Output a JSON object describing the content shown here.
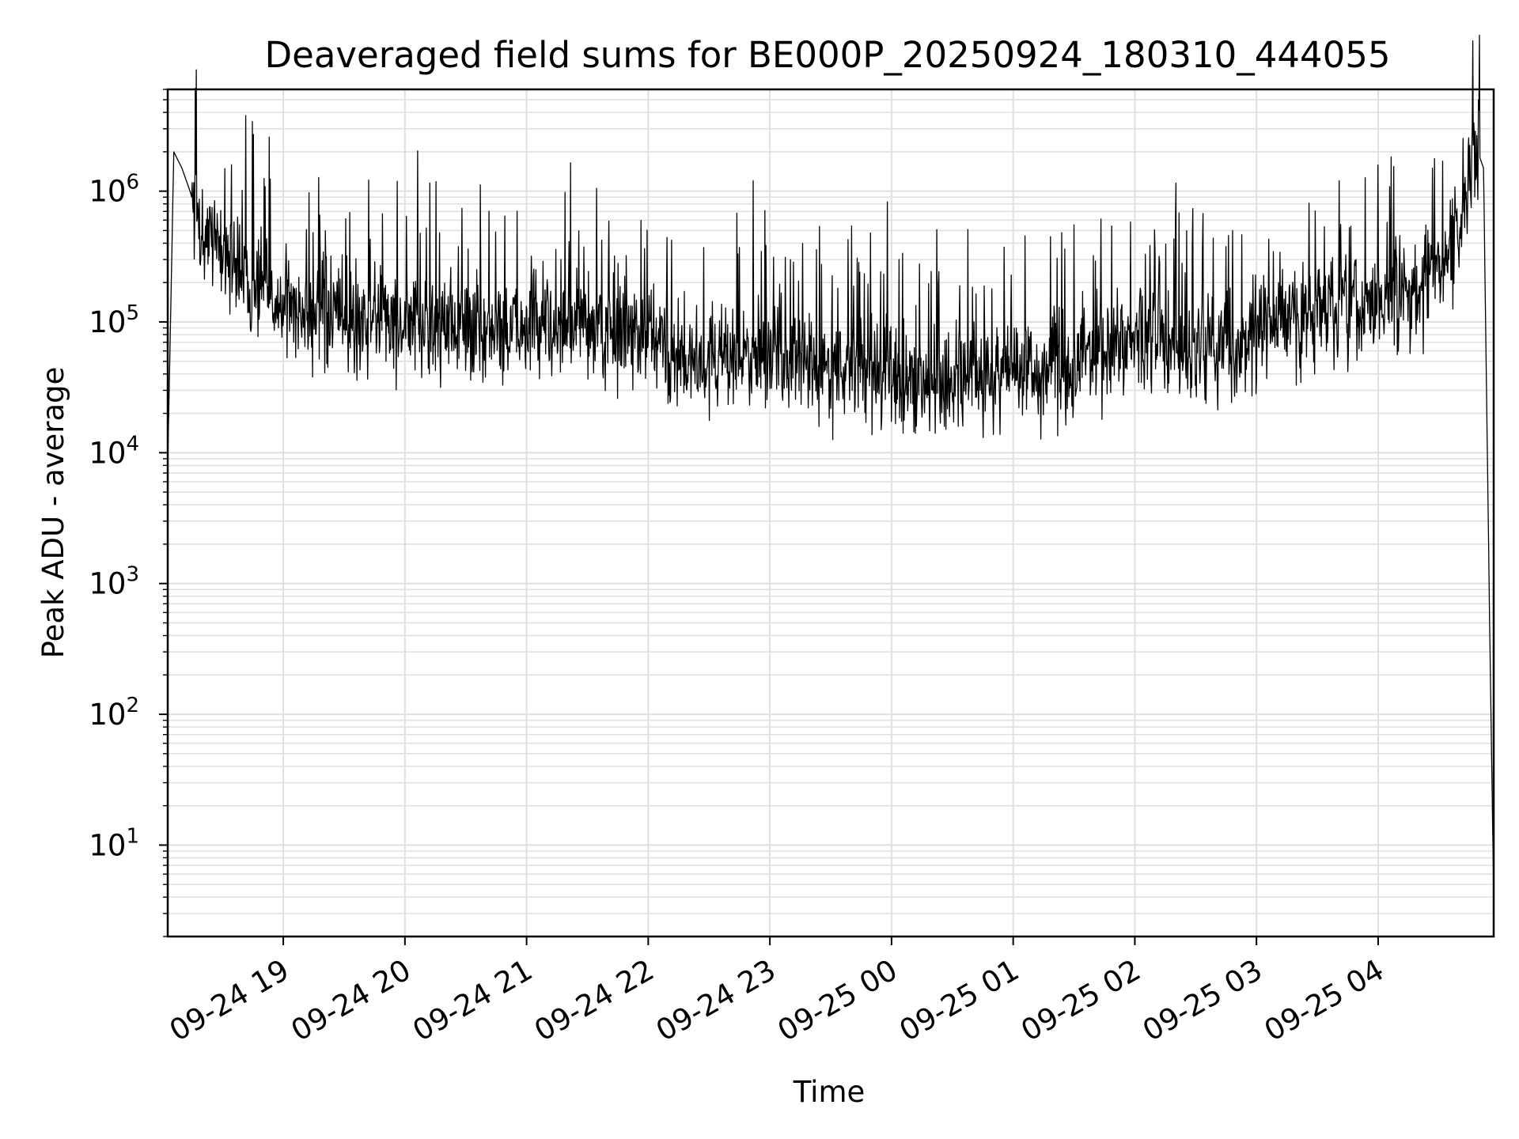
{
  "chart_data": {
    "type": "line",
    "title": "Deaveraged field sums for BE000P_20250924_180310_444055",
    "xlabel": "Time",
    "ylabel": "Peak ADU - average",
    "yscale": "log",
    "ylim": [
      2,
      6000000
    ],
    "xlim": [
      "2025-09-24T18:03",
      "2025-09-25T04:57"
    ],
    "grid": true,
    "x_ticks": [
      "09-24 19",
      "09-24 20",
      "09-24 21",
      "09-24 22",
      "09-24 23",
      "09-25 00",
      "09-25 01",
      "09-25 02",
      "09-25 03",
      "09-25 04"
    ],
    "y_ticks": [
      {
        "base": "10",
        "exp": "1"
      },
      {
        "base": "10",
        "exp": "2"
      },
      {
        "base": "10",
        "exp": "3"
      },
      {
        "base": "10",
        "exp": "4"
      },
      {
        "base": "10",
        "exp": "5"
      },
      {
        "base": "10",
        "exp": "6"
      }
    ],
    "line_color": "#000000",
    "grid_color": "#e0e0e0",
    "series": [
      {
        "x": [
          "2025-09-24T18:03",
          "2025-09-24T18:06",
          "2025-09-24T18:10",
          "2025-09-24T18:14",
          "2025-09-24T18:18",
          "2025-09-24T18:22",
          "2025-09-24T18:30",
          "2025-09-24T18:40",
          "2025-09-24T18:50",
          "2025-09-24T19:00",
          "2025-09-24T19:15",
          "2025-09-24T19:30",
          "2025-09-24T19:45",
          "2025-09-24T20:00",
          "2025-09-24T20:15",
          "2025-09-24T20:30",
          "2025-09-24T20:45",
          "2025-09-24T21:00",
          "2025-09-24T21:15",
          "2025-09-24T21:30",
          "2025-09-24T21:45",
          "2025-09-24T22:00",
          "2025-09-24T22:15",
          "2025-09-24T22:30",
          "2025-09-24T22:45",
          "2025-09-24T23:00",
          "2025-09-24T23:15",
          "2025-09-24T23:30",
          "2025-09-24T23:45",
          "2025-09-25T00:00",
          "2025-09-25T00:15",
          "2025-09-25T00:30",
          "2025-09-25T00:45",
          "2025-09-25T01:00",
          "2025-09-25T01:15",
          "2025-09-25T01:30",
          "2025-09-25T01:45",
          "2025-09-25T02:00",
          "2025-09-25T02:15",
          "2025-09-25T02:30",
          "2025-09-25T02:45",
          "2025-09-25T03:00",
          "2025-09-25T03:15",
          "2025-09-25T03:30",
          "2025-09-25T03:45",
          "2025-09-25T04:00",
          "2025-09-25T04:15",
          "2025-09-25T04:30",
          "2025-09-25T04:40",
          "2025-09-25T04:47",
          "2025-09-25T04:52",
          "2025-09-25T04:55",
          "2025-09-25T04:57"
        ],
        "y": [
          8000,
          2000000,
          1500000,
          1000000,
          600000,
          500000,
          350000,
          250000,
          180000,
          130000,
          110000,
          100000,
          95000,
          90000,
          95000,
          90000,
          85000,
          85000,
          90000,
          88000,
          80000,
          70000,
          55000,
          50000,
          60000,
          55000,
          48000,
          45000,
          45000,
          38000,
          35000,
          38000,
          40000,
          42000,
          40000,
          50000,
          60000,
          70000,
          65000,
          60000,
          65000,
          80000,
          100000,
          120000,
          120000,
          130000,
          160000,
          250000,
          450000,
          2500000,
          1500000,
          500,
          4
        ]
      }
    ]
  }
}
